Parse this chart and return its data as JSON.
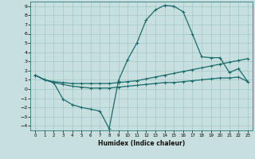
{
  "xlabel": "Humidex (Indice chaleur)",
  "xlim": [
    -0.5,
    23.5
  ],
  "ylim": [
    -4.5,
    9.5
  ],
  "xticks": [
    0,
    1,
    2,
    3,
    4,
    5,
    6,
    7,
    8,
    9,
    10,
    11,
    12,
    13,
    14,
    15,
    16,
    17,
    18,
    19,
    20,
    21,
    22,
    23
  ],
  "yticks": [
    -4,
    -3,
    -2,
    -1,
    0,
    1,
    2,
    3,
    4,
    5,
    6,
    7,
    8,
    9
  ],
  "bg_color": "#c8dfe0",
  "line_color": "#1a6b6b",
  "line1_x": [
    0,
    1,
    2,
    3,
    4,
    5,
    6,
    7,
    8,
    9,
    10,
    11,
    12,
    13,
    14,
    15,
    16,
    17,
    18,
    19,
    20,
    21,
    22,
    23
  ],
  "line1_y": [
    1.5,
    1.0,
    0.7,
    -1.1,
    -1.7,
    -2.0,
    -2.2,
    -2.4,
    -4.3,
    0.9,
    3.2,
    5.0,
    7.5,
    8.6,
    9.1,
    9.0,
    8.4,
    6.0,
    3.5,
    3.4,
    3.4,
    1.8,
    2.2,
    0.8
  ],
  "line2_x": [
    0,
    1,
    2,
    3,
    4,
    5,
    6,
    7,
    8,
    9,
    10,
    11,
    12,
    13,
    14,
    15,
    16,
    17,
    18,
    19,
    20,
    21,
    22,
    23
  ],
  "line2_y": [
    1.5,
    1.0,
    0.8,
    0.7,
    0.6,
    0.6,
    0.6,
    0.6,
    0.6,
    0.7,
    0.8,
    0.9,
    1.1,
    1.3,
    1.5,
    1.7,
    1.9,
    2.1,
    2.3,
    2.5,
    2.7,
    2.9,
    3.1,
    3.3
  ],
  "line3_x": [
    0,
    1,
    2,
    3,
    4,
    5,
    6,
    7,
    8,
    9,
    10,
    11,
    12,
    13,
    14,
    15,
    16,
    17,
    18,
    19,
    20,
    21,
    22,
    23
  ],
  "line3_y": [
    1.5,
    1.0,
    0.7,
    0.5,
    0.3,
    0.2,
    0.1,
    0.1,
    0.1,
    0.2,
    0.3,
    0.4,
    0.5,
    0.6,
    0.7,
    0.7,
    0.8,
    0.9,
    1.0,
    1.1,
    1.2,
    1.2,
    1.3,
    0.8
  ]
}
